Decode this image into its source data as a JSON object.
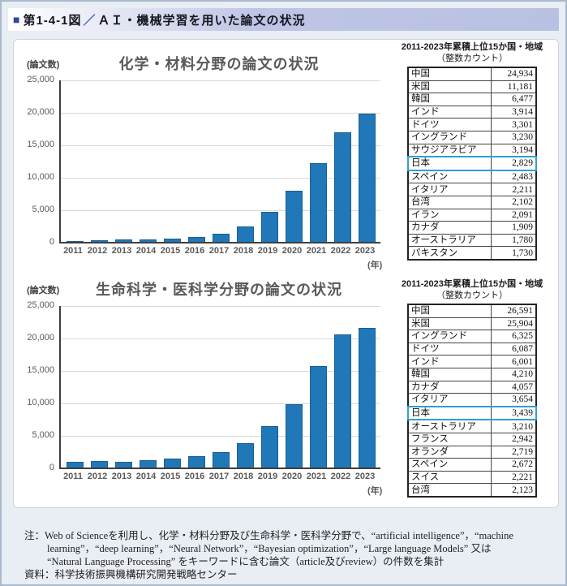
{
  "header": {
    "bullet": "■",
    "fig_label": "第1-4-1図",
    "slash": "／",
    "title": "ＡＩ・機械学習を用いた論文の状況"
  },
  "chart_data": [
    {
      "type": "bar",
      "title": "化学・材料分野の論文の状況",
      "y_axis_unit": "(論文数)",
      "x_axis_unit": "(年)",
      "categories": [
        "2011",
        "2012",
        "2013",
        "2014",
        "2015",
        "2016",
        "2017",
        "2018",
        "2019",
        "2020",
        "2021",
        "2022",
        "2023"
      ],
      "values": [
        250,
        400,
        550,
        520,
        650,
        900,
        1350,
        2500,
        4700,
        8000,
        12200,
        17000,
        19900
      ],
      "ylim": [
        0,
        25000
      ],
      "ytick_interval": 5000,
      "yticks": [
        "25,000",
        "20,000",
        "15,000",
        "10,000",
        "5,000",
        "0"
      ],
      "grid": true,
      "bar_color": "#2078B8",
      "bar_border_color": "#1A5E94"
    },
    {
      "type": "bar",
      "title": "生命科学・医科学分野の論文の状況",
      "y_axis_unit": "(論文数)",
      "x_axis_unit": "(年)",
      "categories": [
        "2011",
        "2012",
        "2013",
        "2014",
        "2015",
        "2016",
        "2017",
        "2018",
        "2019",
        "2020",
        "2021",
        "2022",
        "2023"
      ],
      "values": [
        950,
        1100,
        1050,
        1300,
        1550,
        1900,
        2550,
        3900,
        6500,
        9900,
        15800,
        20600,
        21600
      ],
      "ylim": [
        0,
        25000
      ],
      "ytick_interval": 5000,
      "yticks": [
        "25,000",
        "20,000",
        "15,000",
        "10,000",
        "5,000",
        "0"
      ],
      "grid": true,
      "bar_color": "#2078B8",
      "bar_border_color": "#1A5E94"
    }
  ],
  "tables": [
    {
      "caption_line1": "2011-2023年累積上位15か国・地域",
      "caption_line2": "（整数カウント）",
      "highlight_country": "日本",
      "highlight_color": "#2E9FD4",
      "rows": [
        {
          "country": "中国",
          "value": "24,934"
        },
        {
          "country": "米国",
          "value": "11,181"
        },
        {
          "country": "韓国",
          "value": "6,477"
        },
        {
          "country": "インド",
          "value": "3,914"
        },
        {
          "country": "ドイツ",
          "value": "3,301"
        },
        {
          "country": "イングランド",
          "value": "3,230"
        },
        {
          "country": "サウジアラビア",
          "value": "3,194"
        },
        {
          "country": "日本",
          "value": "2,829"
        },
        {
          "country": "スペイン",
          "value": "2,483"
        },
        {
          "country": "イタリア",
          "value": "2,211"
        },
        {
          "country": "台湾",
          "value": "2,102"
        },
        {
          "country": "イラン",
          "value": "2,091"
        },
        {
          "country": "カナダ",
          "value": "1,909"
        },
        {
          "country": "オーストラリア",
          "value": "1,780"
        },
        {
          "country": "パキスタン",
          "value": "1,730"
        }
      ]
    },
    {
      "caption_line1": "2011-2023年累積上位15か国・地域",
      "caption_line2": "（整数カウント）",
      "highlight_country": "日本",
      "highlight_color": "#2E9FD4",
      "rows": [
        {
          "country": "中国",
          "value": "26,591"
        },
        {
          "country": "米国",
          "value": "25,904"
        },
        {
          "country": "イングランド",
          "value": "6,325"
        },
        {
          "country": "ドイツ",
          "value": "6,087"
        },
        {
          "country": "インド",
          "value": "6,001"
        },
        {
          "country": "韓国",
          "value": "4,210"
        },
        {
          "country": "カナダ",
          "value": "4,057"
        },
        {
          "country": "イタリア",
          "value": "3,654"
        },
        {
          "country": "日本",
          "value": "3,439"
        },
        {
          "country": "オーストラリア",
          "value": "3,210"
        },
        {
          "country": "フランス",
          "value": "2,942"
        },
        {
          "country": "オランダ",
          "value": "2,719"
        },
        {
          "country": "スペイン",
          "value": "2,672"
        },
        {
          "country": "スイス",
          "value": "2,221"
        },
        {
          "country": "台湾",
          "value": "2,123"
        }
      ]
    }
  ],
  "note": {
    "line1": "注：Web of Scienceを利用し、化学・材料分野及び生命科学・医科学分野で、“artificial intelligence”，“machine",
    "line2": "learning”，“deep learning”，“Neural Network”，“Bayesian optimization”，“Large language Models” 又は",
    "line3": "“Natural Language Processing” をキーワードに含む論文（article及びreview）の件数を集計",
    "line4": "資料：科学技術振興機構研究開発戦略センター"
  }
}
